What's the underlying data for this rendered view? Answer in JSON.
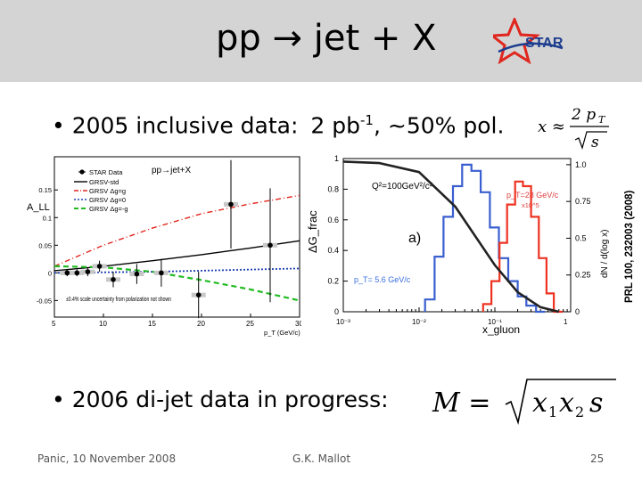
{
  "slide": {
    "title": "pp → jet + X",
    "logo_text": "STAR",
    "bullet1_main": "• 2005 inclusive data:",
    "bullet1_lumi": "2 pb",
    "bullet1_sup": "-1",
    "bullet1_pol": ", ~50% pol.",
    "formula1_lhs": "x ≈",
    "formula1_num": "2 p",
    "formula1_sub": "T",
    "formula1_den": "s",
    "side_ref": "PRL 100, 232003 (2008)",
    "bullet2": "• 2006 di-jet data in progress:",
    "formula2_lhs": "M =",
    "formula2_rhs": "x",
    "formula2_sub1": "1",
    "formula2_mid": "x",
    "formula2_sub2": "2",
    "formula2_s": "s",
    "footer_left": "Panic, 10 November 2008",
    "footer_center": "G.K. Mallot",
    "footer_page": "25"
  },
  "colors": {
    "header_bg": "#d4d4d4",
    "star_red": "#e0261e",
    "star_blue": "#1d3d8f",
    "grsv_max": "#e0261e",
    "grsv_zero": "#1a3fb0",
    "grsv_min": "#22bb22",
    "hist_blue": "#3a5fd0",
    "hist_red": "#ee3322",
    "dg_curve": "#222222",
    "plot_label_red": "#e04040",
    "plot_label_blue": "#3a6fe0",
    "sys_box": "#c8c8c8"
  },
  "chart_data": [
    {
      "type": "scatter",
      "title": "pp→jet+X",
      "xlabel": "p_T (GeV/c)",
      "ylabel": "A_LL",
      "xlim": [
        5,
        30
      ],
      "ylim": [
        -0.08,
        0.21
      ],
      "x_ticks": [
        5,
        10,
        15,
        20,
        25,
        30
      ],
      "y_ticks": [
        -0.05,
        0,
        0.05,
        0.1,
        0.15
      ],
      "legend": [
        "STAR Data",
        "GRSV-std",
        "GRSV Δg=g",
        "GRSV Δg=0",
        "GRSV Δg=-g"
      ],
      "note": "±0.4% scale uncertainty from polarization not shown",
      "points": [
        {
          "x": 6.3,
          "y": 0.0,
          "err": 0.006
        },
        {
          "x": 7.3,
          "y": 0.0,
          "err": 0.006
        },
        {
          "x": 8.4,
          "y": 0.002,
          "err": 0.008
        },
        {
          "x": 9.6,
          "y": 0.012,
          "err": 0.01
        },
        {
          "x": 11.0,
          "y": -0.012,
          "err": 0.014
        },
        {
          "x": 13.4,
          "y": -0.002,
          "err": 0.018
        },
        {
          "x": 15.9,
          "y": 0.0,
          "err": 0.025
        },
        {
          "x": 19.7,
          "y": -0.04,
          "err": 0.042
        },
        {
          "x": 23.0,
          "y": 0.124,
          "err": 0.08
        },
        {
          "x": 27.0,
          "y": 0.05,
          "err": 0.103
        }
      ],
      "curves": [
        {
          "name": "GRSV-std",
          "style": "solid",
          "x": [
            5,
            10,
            15,
            20,
            25,
            30
          ],
          "y": [
            0.004,
            0.012,
            0.022,
            0.033,
            0.045,
            0.058
          ]
        },
        {
          "name": "GRSV Δg=g",
          "style": "dashdot",
          "x": [
            5,
            10,
            15,
            20,
            25,
            30
          ],
          "y": [
            0.012,
            0.05,
            0.081,
            0.107,
            0.125,
            0.14
          ]
        },
        {
          "name": "GRSV Δg=0",
          "style": "dotted",
          "x": [
            5,
            10,
            15,
            20,
            25,
            30
          ],
          "y": [
            0.0,
            0.001,
            0.002,
            0.004,
            0.006,
            0.008
          ]
        },
        {
          "name": "GRSV Δg=-g",
          "style": "dashed",
          "x": [
            5,
            10,
            15,
            20,
            25,
            30
          ],
          "y": [
            0.012,
            0.01,
            0.002,
            -0.013,
            -0.03,
            -0.05
          ]
        }
      ]
    },
    {
      "type": "line",
      "panel_label": "a)",
      "xlabel": "x_gluon",
      "ylabel_left": "ΔG_frac",
      "ylabel_right": "dN / d(log x)",
      "x_scale": "log",
      "xlim": [
        0.001,
        1
      ],
      "x_ticks": [
        "10⁻³",
        "10⁻²",
        "10⁻¹",
        "1"
      ],
      "y_ticks_left": [
        "0",
        "0.2",
        "0.4",
        "0.6",
        "0.8",
        "1"
      ],
      "y_ticks_right": [
        "0",
        "0.25",
        "0.5",
        "0.75",
        "1.0"
      ],
      "annotation_q2": "Q²=100GeV²/c²",
      "label_red": "p_T=28 GeV/c",
      "label_red_scale": "x10^5",
      "label_blue": "p_T= 5.6 GeV/c",
      "curve": {
        "name": "ΔG_frac",
        "x": [
          0.001,
          0.003,
          0.01,
          0.03,
          0.1,
          0.2,
          0.4,
          0.7
        ],
        "y": [
          1.0,
          0.99,
          0.93,
          0.7,
          0.31,
          0.13,
          0.03,
          0.0
        ]
      },
      "hist_blue": {
        "name": "p_T = 5.6 GeV/c",
        "x": [
          0.012,
          0.016,
          0.021,
          0.028,
          0.037,
          0.049,
          0.065,
          0.086,
          0.113,
          0.15,
          0.2,
          0.26,
          0.35
        ],
        "y": [
          0.08,
          0.36,
          0.62,
          0.82,
          0.96,
          0.92,
          0.78,
          0.55,
          0.35,
          0.2,
          0.1,
          0.04,
          0.0
        ]
      },
      "hist_red": {
        "name": "p_T = 28 GeV/c",
        "x": [
          0.07,
          0.09,
          0.115,
          0.145,
          0.185,
          0.235,
          0.3,
          0.38,
          0.48,
          0.6
        ],
        "y": [
          0.05,
          0.2,
          0.45,
          0.7,
          0.85,
          0.82,
          0.62,
          0.35,
          0.12,
          0.0
        ]
      }
    }
  ]
}
